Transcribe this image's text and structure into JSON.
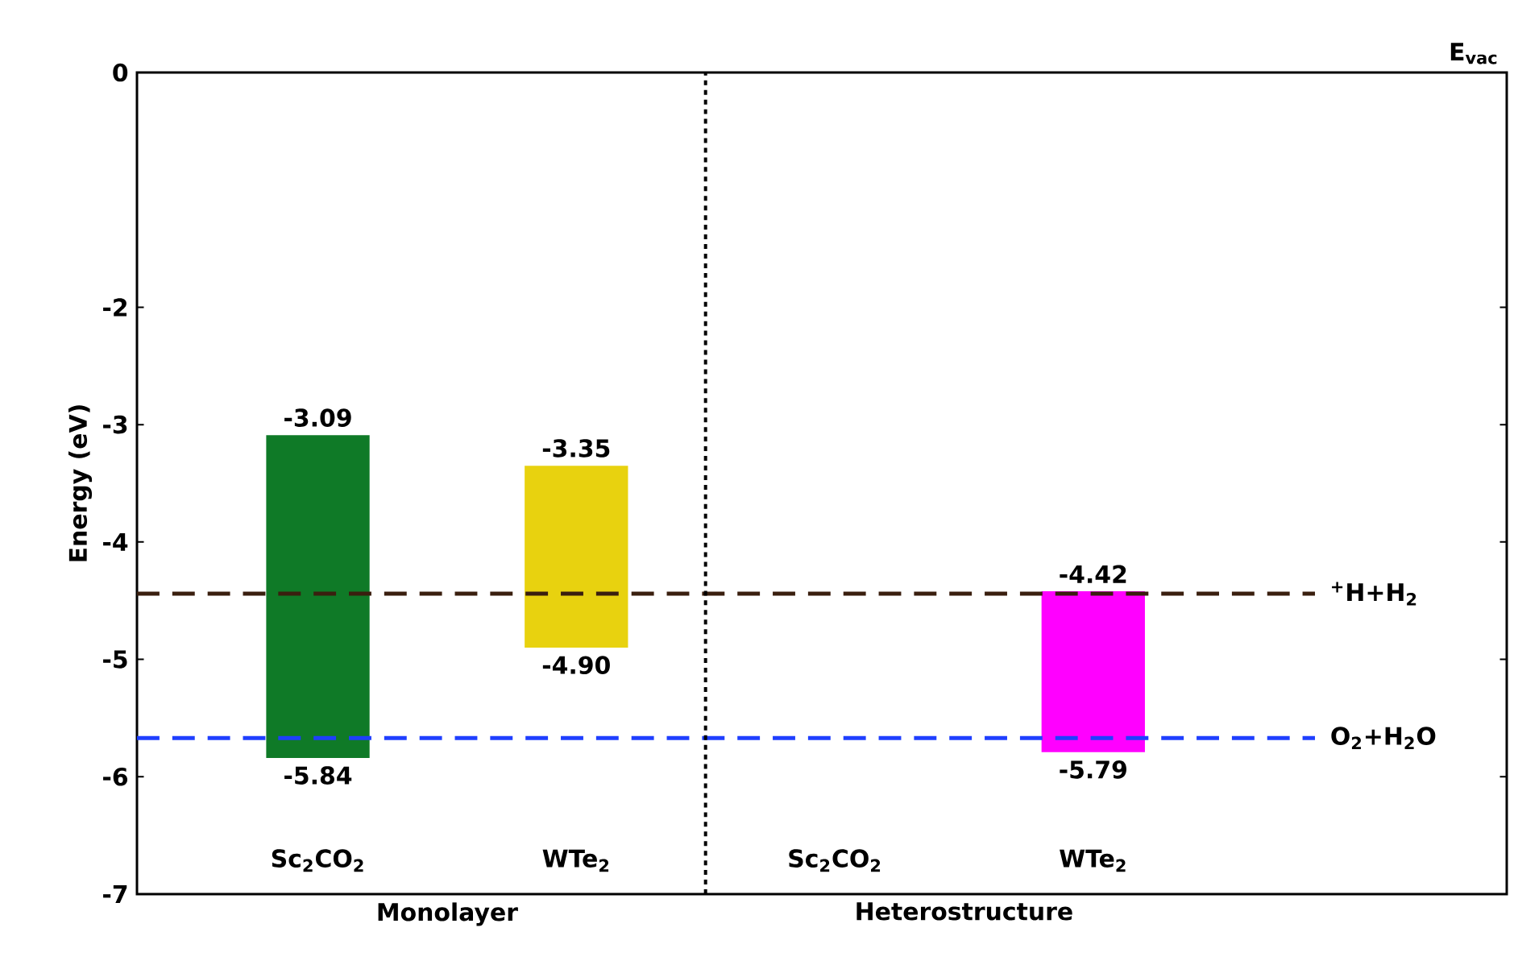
{
  "chart_data": {
    "type": "bar",
    "ylabel": "Energy (eV)",
    "categories": [
      "Sc$_{2}$CO$_{2}$",
      "WTe$_{2}$",
      "Sc$_{2}$CO$_{2}$",
      "WTe$_{2}$"
    ],
    "base": [
      -5.84,
      -4.9,
      null,
      -5.79
    ],
    "values": [
      2.75,
      1.55,
      null,
      1.37
    ],
    "colors": [
      "#0f7a27",
      "#e8d20f",
      null,
      "#ff00ff"
    ],
    "ylim": [
      -7,
      0
    ],
    "yticks": [
      -7,
      -6,
      -5,
      -4,
      -3,
      -2,
      0
    ],
    "ref_lines": [
      {
        "axis": "y",
        "value": -4.44,
        "label": "$^{+}$H+H$_{2}$",
        "color": "#3a1f0f",
        "line_style": "dashed"
      },
      {
        "axis": "y",
        "value": -5.67,
        "label": "O$_{2}$+H$_{2}$O",
        "color": "#1f3fff",
        "line_style": "dashed"
      }
    ],
    "annotations": [
      "E$_{vac}$",
      "Monolayer",
      "Heterostructure",
      {
        "text": "-3.09",
        "x": "Sc$_{2}$CO$_{2}$",
        "y": -3.09
      },
      {
        "text": "-5.84",
        "x": "Sc$_{2}$CO$_{2}$",
        "y": -5.84
      },
      {
        "text": "-3.35",
        "x": "WTe$_{2}$",
        "y": -3.35
      },
      {
        "text": "-4.90",
        "x": "WTe$_{2}$",
        "y": -4.9
      },
      "-4.42",
      "-5.79"
    ]
  }
}
